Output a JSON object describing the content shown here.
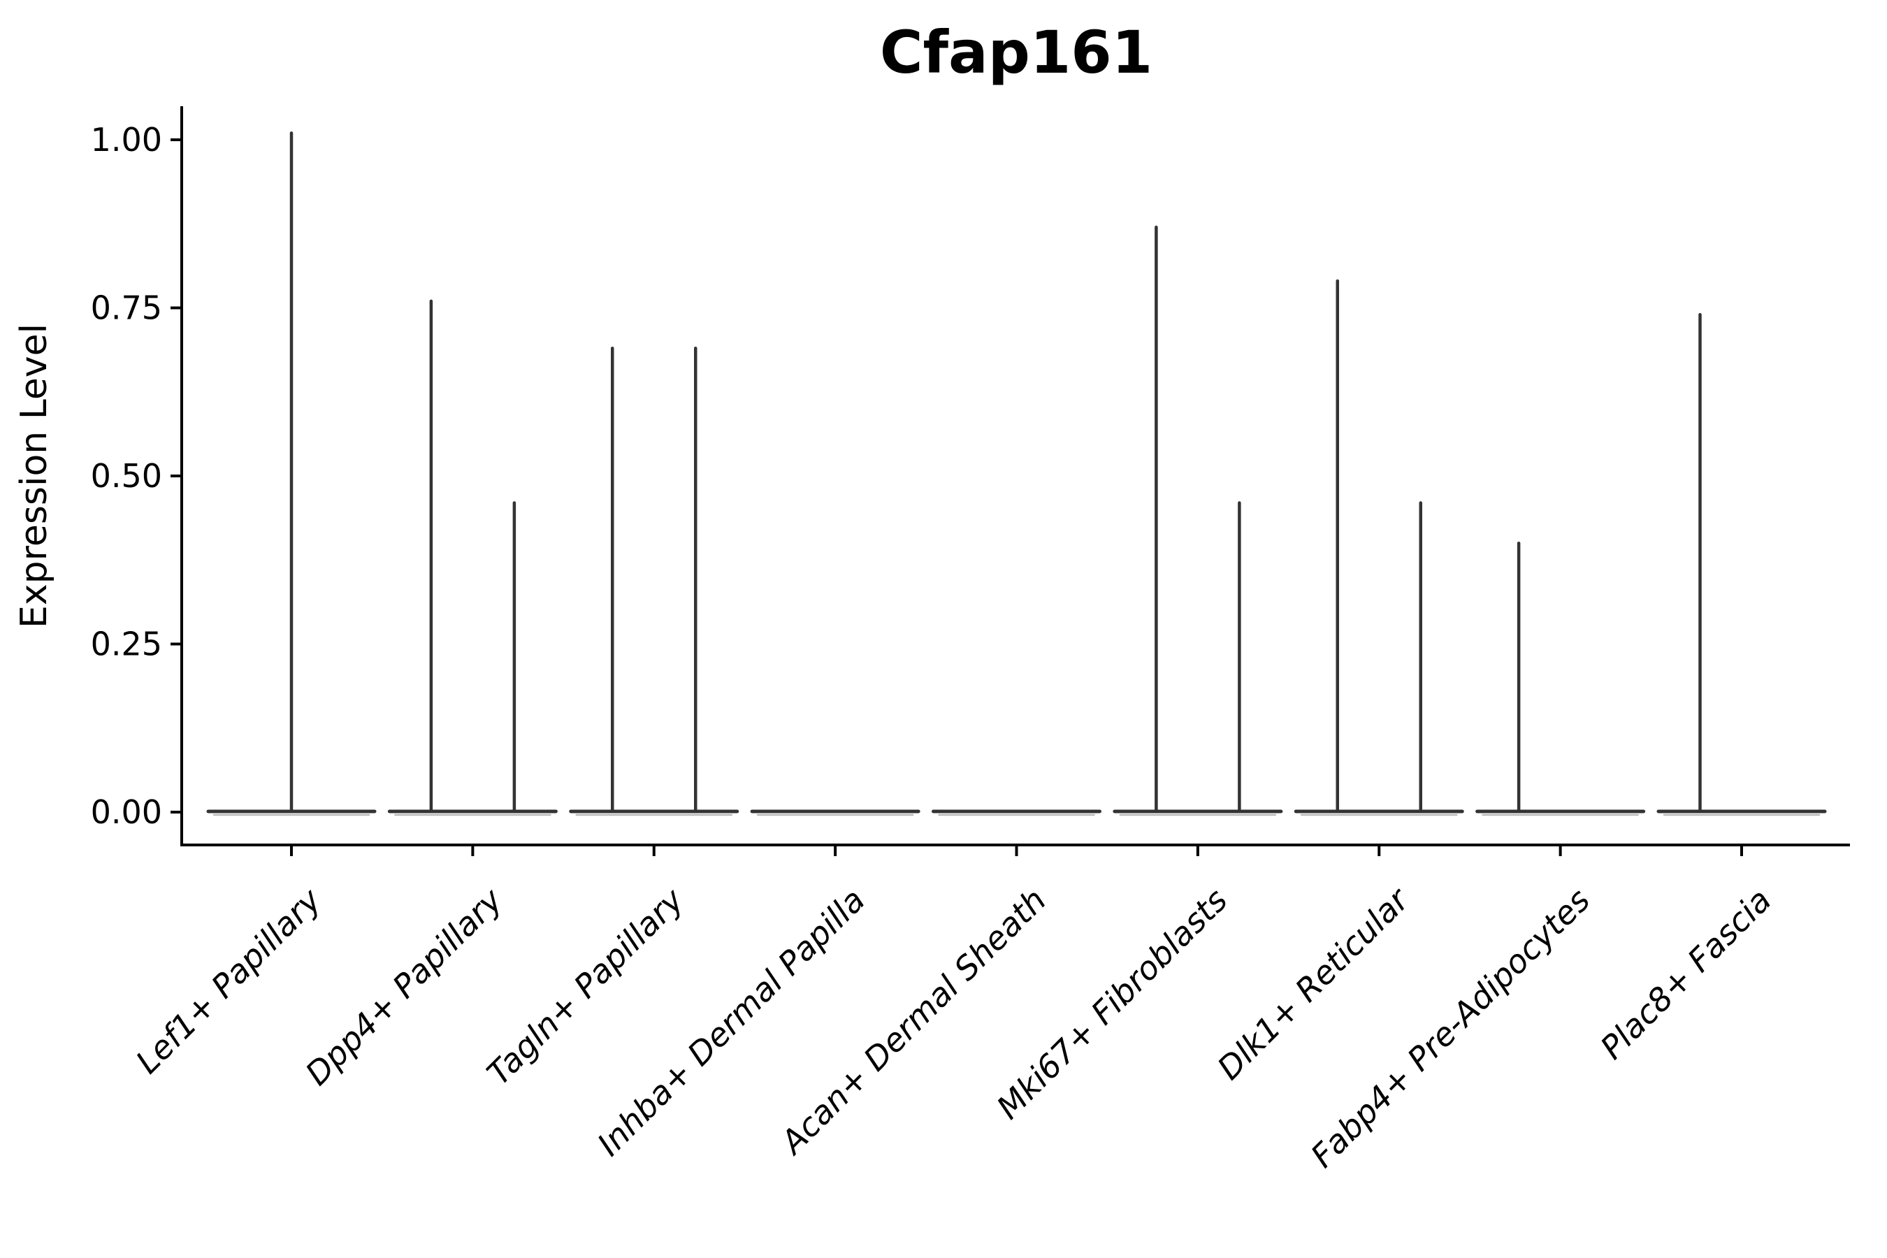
{
  "chart_data": {
    "type": "violin",
    "title": "Cfap161",
    "xlabel": "",
    "ylabel": "Expression Level",
    "ylim": [
      -0.05,
      1.05
    ],
    "yticks": [
      0.0,
      0.25,
      0.5,
      0.75,
      1.0
    ],
    "ytick_labels": [
      "0.00",
      "0.25",
      "0.50",
      "0.75",
      "1.00"
    ],
    "grid": false,
    "legend_position": "none",
    "categories": [
      "Lef1+ Papillary",
      "Dpp4+ Papillary",
      "Tagln+ Papillary",
      "Inhba+ Dermal Papilla",
      "Acan+ Dermal Sheath",
      "Mki67+ Fibroblasts",
      "Dlk1+ Reticular",
      "Fabp4+ Pre-Adipocytes",
      "Plac8+ Fascia"
    ],
    "violins": [
      {
        "category": "Lef1+ Papillary",
        "baseline_value": 0,
        "spikes": [
          {
            "pos": "center",
            "max": 1.01
          }
        ]
      },
      {
        "category": "Dpp4+ Papillary",
        "baseline_value": 0,
        "spikes": [
          {
            "pos": "left",
            "max": 0.76
          },
          {
            "pos": "right",
            "max": 0.46
          }
        ]
      },
      {
        "category": "Tagln+ Papillary",
        "baseline_value": 0,
        "spikes": [
          {
            "pos": "left",
            "max": 0.69
          },
          {
            "pos": "right",
            "max": 0.69
          }
        ]
      },
      {
        "category": "Inhba+ Dermal Papilla",
        "baseline_value": 0,
        "spikes": []
      },
      {
        "category": "Acan+ Dermal Sheath",
        "baseline_value": 0,
        "spikes": []
      },
      {
        "category": "Mki67+ Fibroblasts",
        "baseline_value": 0,
        "spikes": [
          {
            "pos": "left",
            "max": 0.87
          },
          {
            "pos": "right",
            "max": 0.46
          }
        ]
      },
      {
        "category": "Dlk1+ Reticular",
        "baseline_value": 0,
        "spikes": [
          {
            "pos": "left",
            "max": 0.79
          },
          {
            "pos": "right",
            "max": 0.46
          }
        ]
      },
      {
        "category": "Fabp4+ Pre-Adipocytes",
        "baseline_value": 0,
        "spikes": [
          {
            "pos": "left",
            "max": 0.4
          }
        ]
      },
      {
        "category": "Plac8+ Fascia",
        "baseline_value": 0,
        "spikes": [
          {
            "pos": "left",
            "max": 0.74
          }
        ]
      }
    ],
    "colors": {
      "violin_line": "#333333",
      "violin_fill_edge": "#b3b3b3",
      "axis": "#000000",
      "text": "#000000",
      "background": "#ffffff"
    }
  }
}
